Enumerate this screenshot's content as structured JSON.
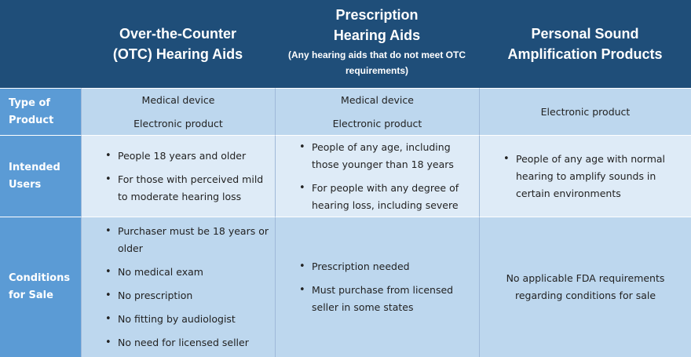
{
  "header": {
    "otc_title_line1": "Over-the-Counter",
    "otc_title_line2": "(OTC) Hearing Aids",
    "rx_title_line1": "Prescription",
    "rx_title_line2": "Hearing Aids",
    "rx_subtitle_line1": "(Any hearing aids that do not meet OTC",
    "rx_subtitle_line2": "requirements)",
    "psap_title_line1": "Personal Sound",
    "psap_title_line2": "Amplification Products"
  },
  "rows": {
    "type": {
      "label_line1": "Type of",
      "label_line2": "Product",
      "otc": [
        "Medical device",
        "Electronic product"
      ],
      "rx": [
        "Medical device",
        "Electronic product"
      ],
      "psap": [
        "Electronic product"
      ]
    },
    "users": {
      "label_line1": "Intended",
      "label_line2": "Users",
      "otc": [
        "People 18 years and older",
        "For those with perceived mild to moderate hearing loss"
      ],
      "rx": [
        "People of any age, including those younger than 18 years",
        "For people with any degree of hearing loss, including severe"
      ],
      "psap": [
        "People of any age with normal hearing to amplify sounds in certain environments"
      ]
    },
    "conditions": {
      "label_line1": "Conditions",
      "label_line2": "for Sale",
      "otc": [
        "Purchaser must be 18 years or older",
        "No medical exam",
        "No prescription",
        "No fitting by audiologist",
        "No need for licensed seller"
      ],
      "rx": [
        "Prescription needed",
        "Must purchase from licensed seller in some states"
      ],
      "psap_line1": "No applicable FDA requirements",
      "psap_line2": "regarding conditions for sale"
    }
  }
}
